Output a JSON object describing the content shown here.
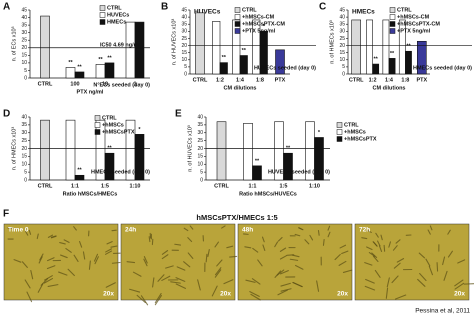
{
  "chart_data": [
    {
      "type": "bar",
      "panel": "A",
      "ylabel": "n. of ECs x10³",
      "xlabel": "PTX ng/ml",
      "categories": [
        "CTRL",
        "100",
        "10",
        "1"
      ],
      "series": [
        {
          "name": "CTRL",
          "color": "#d9d9d9",
          "values": [
            41,
            null,
            null,
            null
          ],
          "stars": [
            null,
            null,
            null,
            null
          ]
        },
        {
          "name": "HUVECs",
          "color": "#ffffff",
          "values": [
            null,
            7,
            9,
            37
          ],
          "stars": [
            null,
            "**",
            "**",
            null
          ]
        },
        {
          "name": "HMECs",
          "color": "#111111",
          "values": [
            null,
            4,
            10,
            37
          ],
          "stars": [
            null,
            "**",
            "**",
            null
          ]
        }
      ],
      "ylim": [
        0,
        45
      ],
      "yticks": [
        0,
        5,
        10,
        15,
        20,
        25,
        30,
        35,
        40,
        45
      ],
      "reference_line": 20,
      "annotations": [
        "IC50 4.69 ng/ml",
        "N°ECs seeded (day 0)"
      ]
    },
    {
      "type": "bar",
      "panel": "B",
      "title": "HUVECs",
      "ylabel": "n. of HUVECs x10³",
      "xlabel": "CM dilutions",
      "categories": [
        "CTRL",
        "1:2",
        "1:4",
        "1:8",
        "PTX"
      ],
      "series": [
        {
          "name": "CTRL",
          "color": "#d9d9d9",
          "values": [
            43,
            null,
            null,
            null,
            null
          ],
          "stars": [
            null,
            null,
            null,
            null,
            null
          ]
        },
        {
          "name": "+hMSCs-CM",
          "color": "#ffffff",
          "values": [
            null,
            37,
            38,
            38,
            null
          ],
          "stars": [
            null,
            null,
            null,
            null,
            null
          ]
        },
        {
          "name": "+hMSCsPTX-CM",
          "color": "#111111",
          "values": [
            null,
            8,
            13,
            30,
            null
          ],
          "stars": [
            null,
            "**",
            "**",
            "*",
            null
          ]
        },
        {
          "name": "+PTX 5ng/ml",
          "color": "#3a3a9a",
          "values": [
            null,
            null,
            null,
            null,
            17
          ],
          "stars": [
            null,
            null,
            null,
            null,
            null
          ]
        }
      ],
      "ylim": [
        0,
        45
      ],
      "yticks": [
        0,
        5,
        10,
        15,
        20,
        25,
        30,
        35,
        40,
        45
      ],
      "reference_line": 20,
      "annotations": [
        "HUVECs seeded (day 0)"
      ]
    },
    {
      "type": "bar",
      "panel": "C",
      "title": "HMECs",
      "ylabel": "n. of HMECs x10³",
      "xlabel": "CM dilutions",
      "categories": [
        "CTRL",
        "1:2",
        "1:4",
        "1:8",
        "PTX"
      ],
      "series": [
        {
          "name": "CTRL",
          "color": "#d9d9d9",
          "values": [
            38,
            null,
            null,
            null,
            null
          ],
          "stars": [
            null,
            null,
            null,
            null,
            null
          ]
        },
        {
          "name": "+hMSCs-CM",
          "color": "#ffffff",
          "values": [
            null,
            38,
            38,
            38,
            null
          ],
          "stars": [
            null,
            null,
            null,
            null,
            null
          ]
        },
        {
          "name": "+hMSCsPTX-CM",
          "color": "#111111",
          "values": [
            null,
            7,
            11,
            16,
            null
          ],
          "stars": [
            null,
            "**",
            "**",
            "**",
            null
          ]
        },
        {
          "name": "+PTX 5ng/ml",
          "color": "#3a3a9a",
          "values": [
            null,
            null,
            null,
            null,
            23
          ],
          "stars": [
            null,
            null,
            null,
            null,
            null
          ]
        }
      ],
      "ylim": [
        0,
        45
      ],
      "yticks": [
        0,
        5,
        10,
        15,
        20,
        25,
        30,
        35,
        40,
        45
      ],
      "reference_line": 20,
      "annotations": [
        "HMECs seeded (day 0)"
      ]
    },
    {
      "type": "bar",
      "panel": "D",
      "ylabel": "n. of HMECs x10³",
      "xlabel": "Ratio hMSCs/HMECs",
      "categories": [
        "CTRL",
        "1:1",
        "1:5",
        "1:10"
      ],
      "series": [
        {
          "name": "CTRL",
          "color": "#d9d9d9",
          "values": [
            38,
            null,
            null,
            null
          ],
          "stars": [
            null,
            null,
            null,
            null
          ]
        },
        {
          "name": "+hMSCs",
          "color": "#ffffff",
          "values": [
            null,
            38,
            38,
            38
          ],
          "stars": [
            null,
            null,
            null,
            null
          ]
        },
        {
          "name": "+hMSCsPTX",
          "color": "#111111",
          "values": [
            null,
            3,
            17,
            29
          ],
          "stars": [
            null,
            "**",
            "**",
            "*"
          ]
        }
      ],
      "ylim": [
        0,
        40
      ],
      "yticks": [
        0,
        5,
        10,
        15,
        20,
        25,
        30,
        35,
        40
      ],
      "reference_line": 20,
      "annotations": [
        "HMECs seeded (day 0)"
      ]
    },
    {
      "type": "bar",
      "panel": "E",
      "ylabel": "n. of HUVECs x10³",
      "xlabel": "Ratio hMSCs/HUVECs",
      "categories": [
        "CTRL",
        "1:1",
        "1:5",
        "1:10"
      ],
      "series": [
        {
          "name": "CTRL",
          "color": "#d9d9d9",
          "values": [
            37,
            null,
            null,
            null
          ],
          "stars": [
            null,
            null,
            null,
            null
          ]
        },
        {
          "name": "+hMSCs",
          "color": "#ffffff",
          "values": [
            null,
            36,
            37,
            37
          ],
          "stars": [
            null,
            null,
            null,
            null
          ]
        },
        {
          "name": "+hMSCsPTX",
          "color": "#111111",
          "values": [
            null,
            9,
            17,
            27
          ],
          "stars": [
            null,
            "**",
            "**",
            "*"
          ]
        }
      ],
      "ylim": [
        0,
        40
      ],
      "yticks": [
        0,
        5,
        10,
        15,
        20,
        25,
        30,
        35,
        40
      ],
      "reference_line": 20,
      "annotations": [
        "HUVECs seeded (day 0)"
      ]
    }
  ],
  "panel_f": {
    "label": "F",
    "title": "hMSCsPTX/HMECs 1:5",
    "images": [
      {
        "label": "Time 0",
        "magnification": "20x"
      },
      {
        "label": "24h",
        "magnification": "20x"
      },
      {
        "label": "48h",
        "magnification": "20x"
      },
      {
        "label": "72h",
        "magnification": "20x"
      }
    ]
  },
  "credit": "Pessina et al, 2011"
}
